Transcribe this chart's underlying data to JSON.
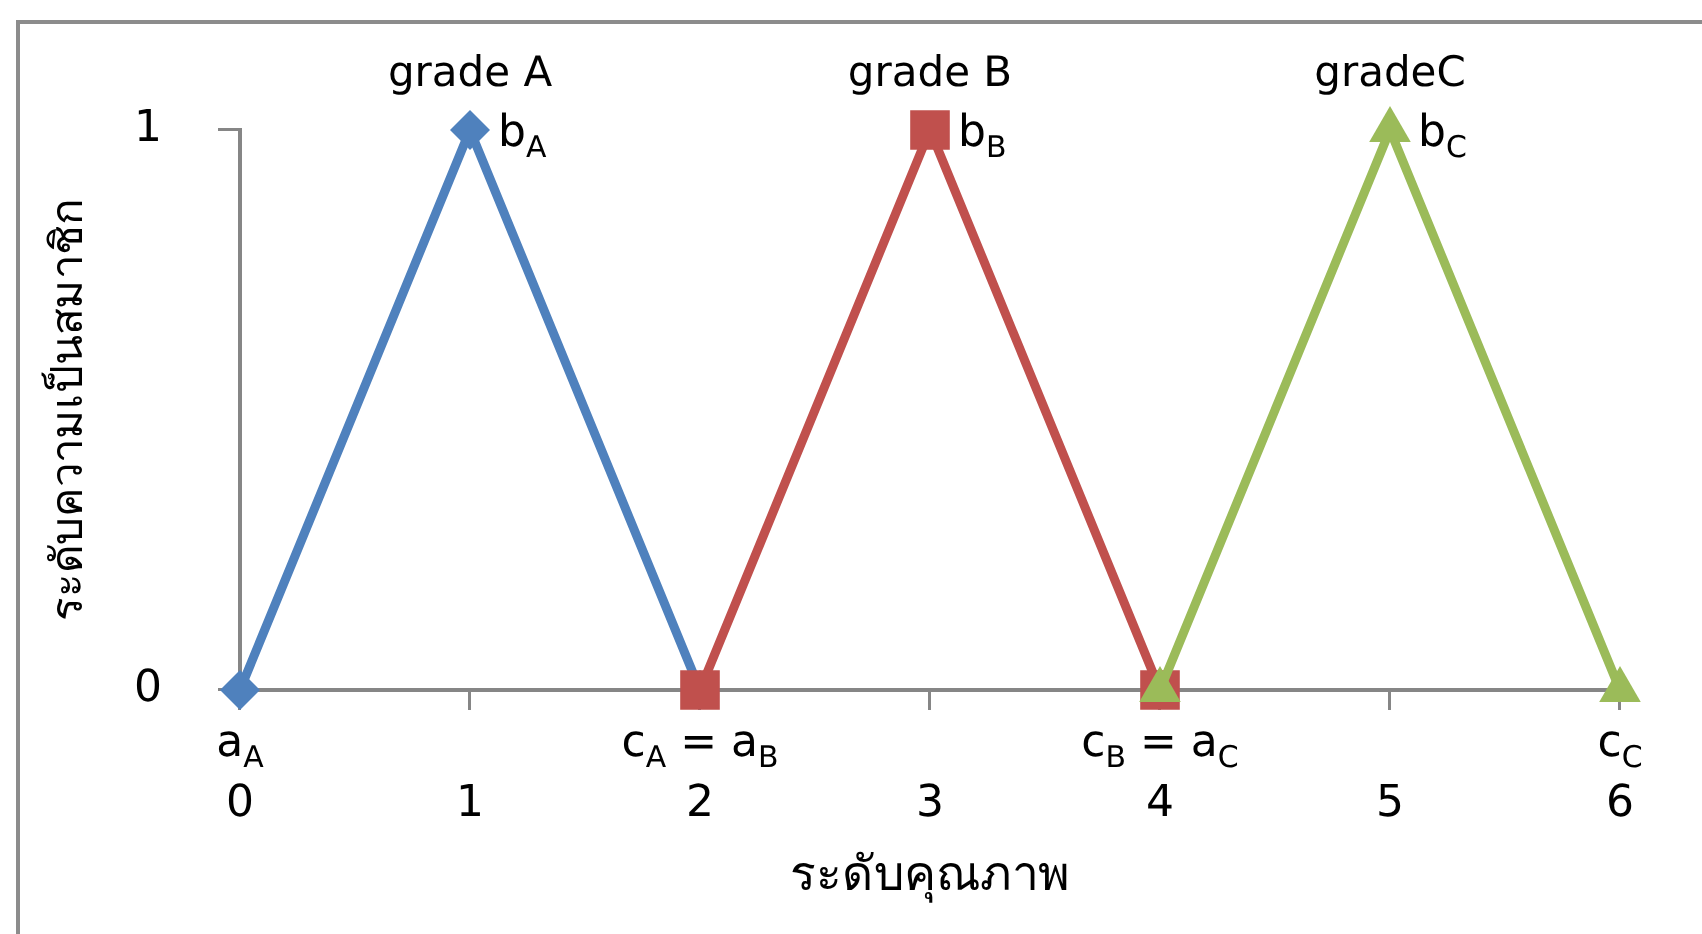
{
  "chart_data": {
    "type": "line",
    "xlabel": "ระดับคุณภาพ",
    "ylabel": "ระดับความเป็นสมาชิก",
    "xlim": [
      0,
      6
    ],
    "xticks": [
      0,
      1,
      2,
      3,
      4,
      5,
      6
    ],
    "ylim": [
      0,
      1
    ],
    "yticks": [
      0,
      1
    ],
    "grid": false,
    "legend": false,
    "series": [
      {
        "name": "grade A",
        "color": "#4f81bd",
        "marker": "diamond",
        "x": [
          0,
          1,
          2
        ],
        "values": [
          0,
          1,
          0
        ]
      },
      {
        "name": "grade B",
        "color": "#c0504d",
        "marker": "square",
        "x": [
          2,
          3,
          4
        ],
        "values": [
          0,
          1,
          0
        ]
      },
      {
        "name": "gradeC",
        "color": "#9bbb59",
        "marker": "triangle",
        "x": [
          4,
          5,
          6
        ],
        "values": [
          0,
          1,
          0
        ]
      }
    ],
    "annotations": [
      {
        "text": "a$_{A}$",
        "x": 0,
        "y": 0
      },
      {
        "text": "b$_{A}$",
        "x": 1,
        "y": 1
      },
      {
        "text": "c$_{A}$ = a$_{B}$",
        "x": 2,
        "y": 0
      },
      {
        "text": "b$_{B}$",
        "x": 3,
        "y": 1
      },
      {
        "text": "c$_{B}$ = a$_{C}$",
        "x": 4,
        "y": 0
      },
      {
        "text": "b$_{C}$",
        "x": 5,
        "y": 1
      },
      {
        "text": "c$_{C}$",
        "x": 6,
        "y": 0
      }
    ]
  }
}
